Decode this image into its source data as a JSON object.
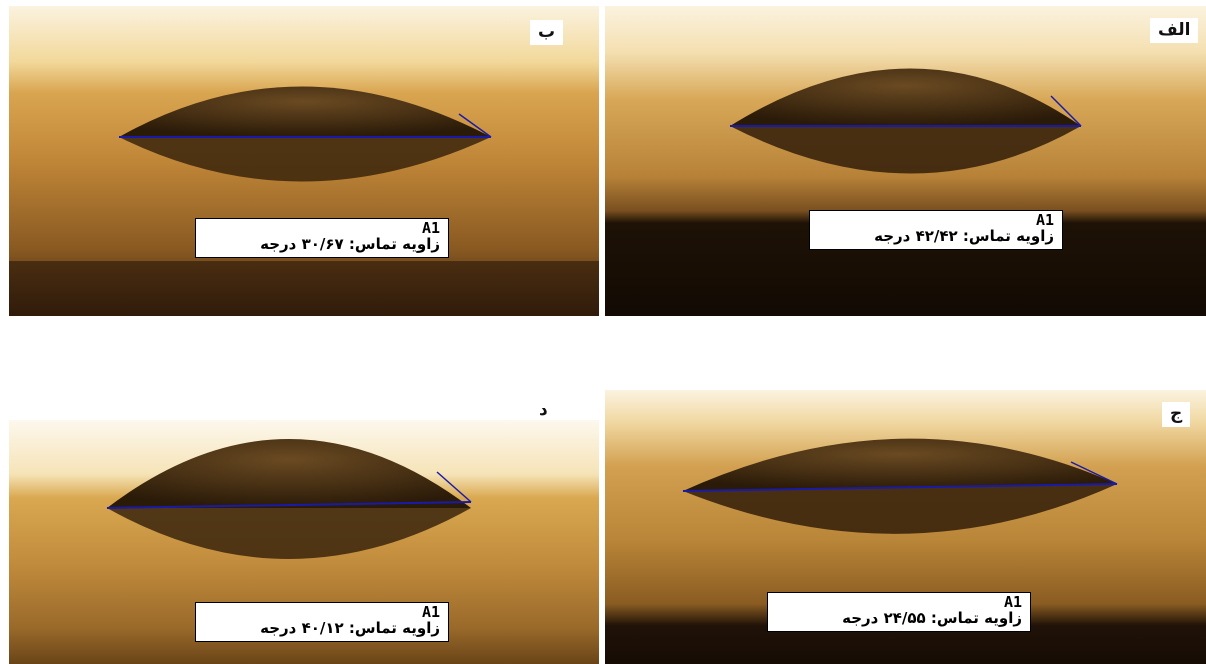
{
  "panels": [
    {
      "id": "alef",
      "letter": "الف",
      "sample": "A1",
      "angle_text": "زاویه تماس: ۴۲/۴۲ درجه"
    },
    {
      "id": "be",
      "letter": "ب",
      "sample": "A1",
      "angle_text": "زاویه تماس: ۳۰/۶۷ درجه"
    },
    {
      "id": "jim",
      "letter": "ج",
      "sample": "A1",
      "angle_text": "زاویه تماس: ۲۴/۵۵ درجه"
    },
    {
      "id": "dal",
      "letter": "د",
      "sample": "A1",
      "angle_text": "زاویه تماس: ۴۰/۱۲ درجه"
    }
  ],
  "colors": {
    "baseline": "#1a1aa8",
    "background_light": "#f4e4c0",
    "surface": "#c8923c",
    "droplet": "#4a3010",
    "dark_band": "#1e1206"
  }
}
